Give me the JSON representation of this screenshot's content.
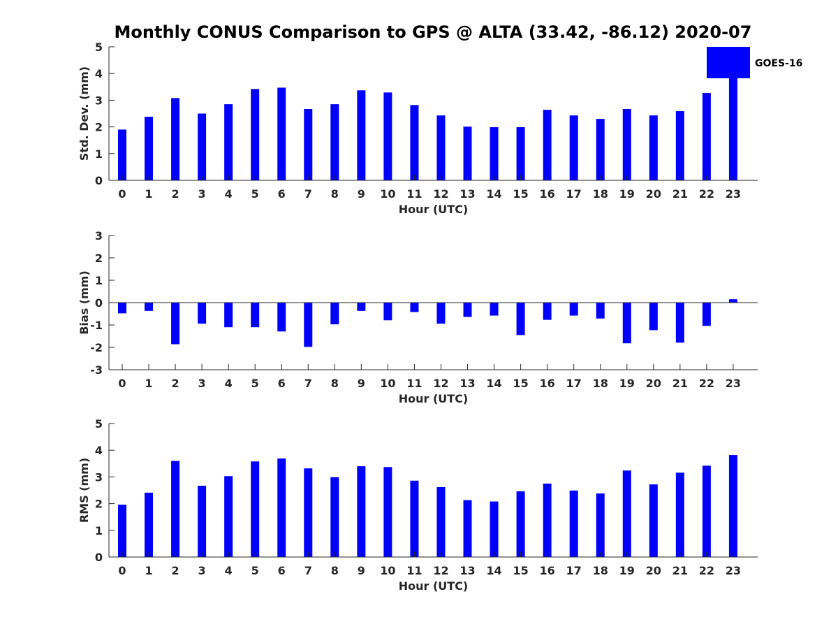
{
  "figure_title": "Monthly CONUS Comparison to GPS @ ALTA (33.42, -86.12) 2020-07",
  "bar_color": "#0000ff",
  "legend": {
    "label": "GOES-16",
    "position": "top-right"
  },
  "chart_data": [
    {
      "type": "bar",
      "title": "",
      "xlabel": "Hour (UTC)",
      "ylabel": "Std. Dev. (mm)",
      "ylim": [
        0,
        5
      ],
      "yticks": [
        0,
        1,
        2,
        3,
        4,
        5
      ],
      "categories": [
        "0",
        "1",
        "2",
        "3",
        "4",
        "5",
        "6",
        "7",
        "8",
        "9",
        "10",
        "11",
        "12",
        "13",
        "14",
        "15",
        "16",
        "17",
        "18",
        "19",
        "20",
        "21",
        "22",
        "23"
      ],
      "series": [
        {
          "name": "GOES-16",
          "values": [
            1.9,
            2.38,
            3.08,
            2.5,
            2.85,
            3.42,
            3.47,
            2.67,
            2.85,
            3.37,
            3.29,
            2.82,
            2.43,
            2.01,
            1.99,
            1.99,
            2.64,
            2.43,
            2.3,
            2.67,
            2.43,
            2.59,
            3.27,
            3.85
          ]
        }
      ]
    },
    {
      "type": "bar",
      "title": "",
      "xlabel": "Hour (UTC)",
      "ylabel": "Bias (mm)",
      "ylim": [
        -3,
        3
      ],
      "yticks": [
        -3,
        -2,
        -1,
        0,
        1,
        2,
        3
      ],
      "categories": [
        "0",
        "1",
        "2",
        "3",
        "4",
        "5",
        "6",
        "7",
        "8",
        "9",
        "10",
        "11",
        "12",
        "13",
        "14",
        "15",
        "16",
        "17",
        "18",
        "19",
        "20",
        "21",
        "22",
        "23"
      ],
      "series": [
        {
          "name": "GOES-16",
          "values": [
            -0.48,
            -0.37,
            -1.86,
            -0.94,
            -1.1,
            -1.1,
            -1.29,
            -1.98,
            -0.97,
            -0.37,
            -0.79,
            -0.42,
            -0.94,
            -0.64,
            -0.58,
            -1.45,
            -0.77,
            -0.58,
            -0.71,
            -1.82,
            -1.23,
            -1.79,
            -1.04,
            0.15
          ]
        }
      ]
    },
    {
      "type": "bar",
      "title": "",
      "xlabel": "Hour (UTC)",
      "ylabel": "RMS (mm)",
      "ylim": [
        0,
        5
      ],
      "yticks": [
        0,
        1,
        2,
        3,
        4,
        5
      ],
      "categories": [
        "0",
        "1",
        "2",
        "3",
        "4",
        "5",
        "6",
        "7",
        "8",
        "9",
        "10",
        "11",
        "12",
        "13",
        "14",
        "15",
        "16",
        "17",
        "18",
        "19",
        "20",
        "21",
        "22",
        "23"
      ],
      "series": [
        {
          "name": "GOES-16",
          "values": [
            1.96,
            2.41,
            3.6,
            2.67,
            3.03,
            3.58,
            3.69,
            3.32,
            2.99,
            3.4,
            3.37,
            2.86,
            2.62,
            2.13,
            2.08,
            2.46,
            2.75,
            2.49,
            2.38,
            3.24,
            2.72,
            3.16,
            3.42,
            3.82
          ]
        }
      ]
    }
  ]
}
